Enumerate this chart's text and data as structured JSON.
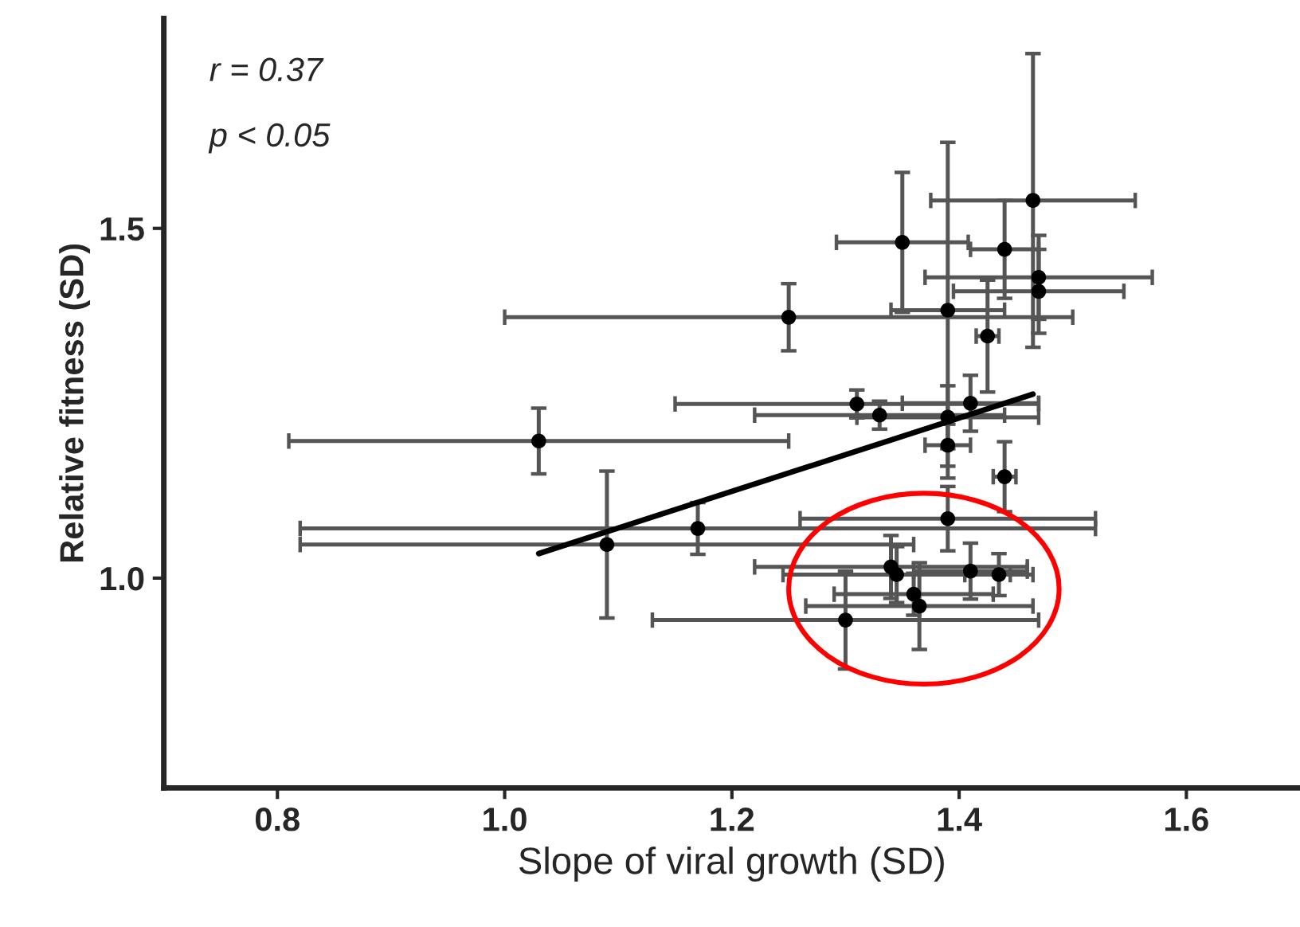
{
  "chart_data": {
    "type": "scatter",
    "xlabel": "Slope of viral growth (SD)",
    "ylabel": "Relative fitness (SD)",
    "annotations": [
      "r = 0.37",
      "p < 0.05"
    ],
    "xlim": [
      0.7,
      1.7
    ],
    "ylim": [
      0.7,
      1.8
    ],
    "xticks": [
      0.8,
      {
        "value": 1.0,
        "label": "1.0"
      },
      1.2,
      1.4,
      1.6
    ],
    "yticks": [
      {
        "value": 1.0,
        "label": "1.0"
      },
      1.5
    ],
    "grid": false,
    "legend": false,
    "series": [
      {
        "color": "#000000",
        "marker": "circle",
        "x": [
          1.03,
          1.09,
          1.17,
          1.25,
          1.35,
          1.39,
          1.31,
          1.33,
          1.39,
          1.39,
          1.39,
          1.34,
          1.345,
          1.36,
          1.365,
          1.41,
          1.435,
          1.3,
          1.44,
          1.465,
          1.47,
          1.47,
          1.425,
          1.44,
          1.41
        ],
        "values": [
          1.196,
          1.048,
          1.071,
          1.373,
          1.48,
          1.383,
          1.249,
          1.233,
          1.23,
          1.19,
          1.085,
          1.016,
          1.005,
          0.977,
          0.96,
          1.01,
          1.005,
          0.94,
          1.47,
          1.54,
          1.43,
          1.41,
          1.346,
          1.145,
          1.25
        ],
        "errors": [
          0.047,
          0.105,
          0.037,
          0.048,
          0.1,
          0.24,
          0.02,
          0.02,
          0.045,
          0.03,
          0.046,
          0.045,
          0.04,
          0.03,
          0.062,
          0.04,
          0.03,
          0.07,
          0.07,
          0.21,
          0.06,
          0.06,
          0.08,
          0.05,
          0.04
        ],
        "xerrors": [
          0.22,
          0.27,
          0.35,
          0.25,
          0.058,
          0.05,
          0.16,
          0.11,
          0.08,
          0.02,
          0.13,
          0.12,
          0.1,
          0.07,
          0.1,
          0.05,
          0.03,
          0.17,
          0.03,
          0.09,
          0.1,
          0.075,
          0.01,
          0.01,
          0.06
        ]
      },
      {
        "type": "line",
        "color": "#000000",
        "line_style": "solid",
        "marker": "none",
        "x": [
          1.03,
          1.465
        ],
        "values": [
          1.035,
          1.263
        ]
      }
    ]
  }
}
